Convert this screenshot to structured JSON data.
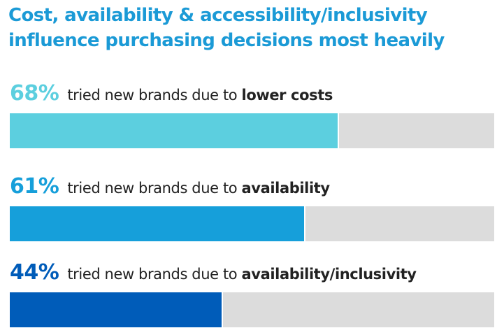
{
  "title": "Cost, availability & accessibility/inclusivity influence purchasing decisions most heavily",
  "colors": {
    "title": "#1b9ad6",
    "track": "#dcdcdc"
  },
  "rows": [
    {
      "percent_label": "68%",
      "text_plain": "tried new brands due to",
      "text_bold": "lower costs",
      "color": "#5ccfdf"
    },
    {
      "percent_label": "61%",
      "text_plain": "tried new brands due to",
      "text_bold": "availability",
      "color": "#169fda"
    },
    {
      "percent_label": "44%",
      "text_plain": "tried new brands due to",
      "text_bold": "availability/inclusivity",
      "color": "#005cb9"
    }
  ],
  "chart_data": {
    "type": "bar",
    "orientation": "horizontal",
    "title": "Cost, availability & accessibility/inclusivity influence purchasing decisions most heavily",
    "categories": [
      "lower costs",
      "availability",
      "availability/inclusivity"
    ],
    "values": [
      68,
      61,
      44
    ],
    "unit": "%",
    "xlim": [
      0,
      100
    ],
    "grid": false,
    "legend": "none"
  }
}
